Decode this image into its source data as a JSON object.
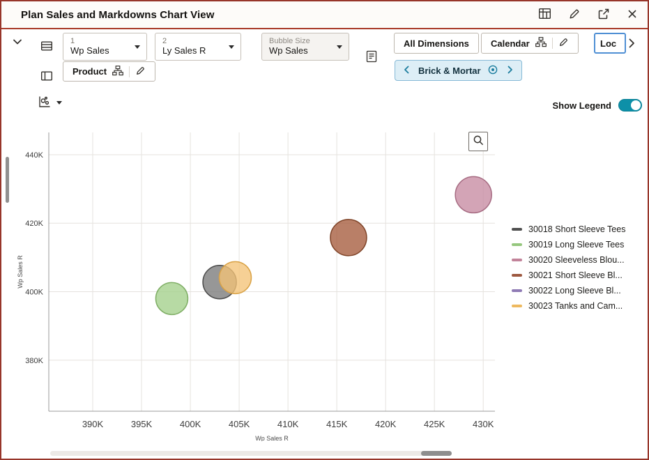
{
  "window": {
    "title": "Plan Sales and Markdowns Chart View"
  },
  "toolbar": {
    "measure_slot1": {
      "index": "1",
      "value": "Wp Sales"
    },
    "measure_slot2": {
      "index": "2",
      "value": "Ly Sales R"
    },
    "bubble_size_slot": {
      "label": "Bubble Size",
      "value": "Wp Sales"
    },
    "all_dimensions_label": "All Dimensions",
    "calendar_label": "Calendar",
    "location_label": "Loc",
    "product_label": "Product",
    "context_filter_label": "Brick & Mortar",
    "show_legend_label": "Show Legend",
    "show_legend_on": true
  },
  "chart_data": {
    "type": "scatter",
    "variant": "bubble",
    "bubble_size_measure": "Wp Sales",
    "grid": true,
    "legend_position": "right",
    "x_axis": {
      "label": "Wp Sales R",
      "domain": [
        385500,
        431200
      ],
      "ticks": [
        {
          "v": 390000,
          "label": "390K"
        },
        {
          "v": 395000,
          "label": "395K"
        },
        {
          "v": 400000,
          "label": "400K"
        },
        {
          "v": 405000,
          "label": "405K"
        },
        {
          "v": 410000,
          "label": "410K"
        },
        {
          "v": 415000,
          "label": "415K"
        },
        {
          "v": 420000,
          "label": "420K"
        },
        {
          "v": 425000,
          "label": "425K"
        },
        {
          "v": 430000,
          "label": "430K"
        }
      ]
    },
    "y_axis": {
      "label": "Wp Sales R",
      "domain": [
        365100,
        446500
      ],
      "ticks": [
        {
          "v": 380000,
          "label": "380K"
        },
        {
          "v": 400000,
          "label": "400K"
        },
        {
          "v": 420000,
          "label": "420K"
        },
        {
          "v": 440000,
          "label": "440K"
        }
      ]
    },
    "series_legend": [
      {
        "label": "30018 Short Sleeve Tees",
        "color": "#4f4f4f"
      },
      {
        "label": "30019 Long Sleeve Tees",
        "color": "#96c77e"
      },
      {
        "label": "30020 Sleeveless Blou...",
        "color": "#c2839a"
      },
      {
        "label": "30021 Short Sleeve Bl...",
        "color": "#9d5940"
      },
      {
        "label": "30022 Long Sleeve Bl...",
        "color": "#8f7bb5"
      },
      {
        "label": "30023 Tanks and Cam...",
        "color": "#eeb95f"
      }
    ],
    "points": [
      {
        "series": "30019 Long Sleeve Tees",
        "x": 398100,
        "y": 398000,
        "r": 23,
        "fill": "#a3cf8b",
        "stroke": "#7fae65"
      },
      {
        "series": "30018 Short Sleeve Tees",
        "x": 403000,
        "y": 402800,
        "r": 24,
        "fill": "#7a7a7a",
        "stroke": "#4a4a4a"
      },
      {
        "series": "30023 Tanks and Cam...",
        "x": 404600,
        "y": 404100,
        "r": 23,
        "fill": "#f3c377",
        "stroke": "#d9a246"
      },
      {
        "series": "30021 Short Sleeve Bl...",
        "x": 416200,
        "y": 415800,
        "r": 26,
        "fill": "#a55b3c",
        "stroke": "#7e4226"
      },
      {
        "series": "30020 Sleeveless Blou...",
        "x": 429000,
        "y": 428300,
        "r": 26,
        "fill": "#c68ba1",
        "stroke": "#a66b82"
      }
    ]
  }
}
